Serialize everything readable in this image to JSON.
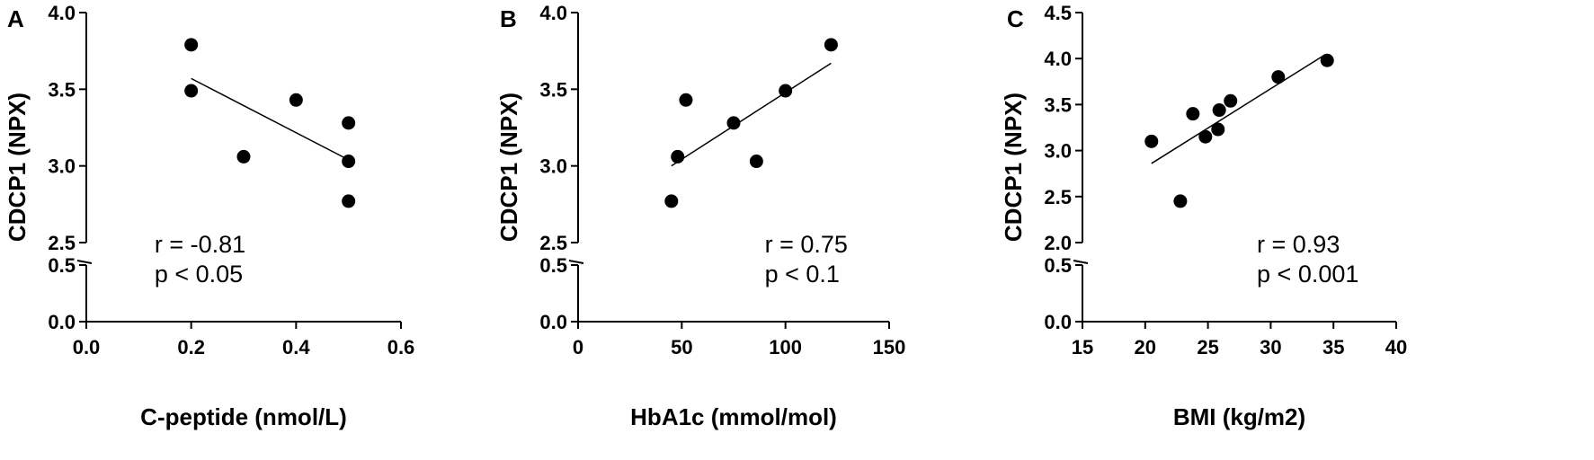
{
  "chart_data": [
    {
      "type": "scatter",
      "panel": "A",
      "xlabel": "C-peptide (nmol/L)",
      "ylabel": "CDCP1 (NPX)",
      "xlim": [
        0.0,
        0.6
      ],
      "xticks": [
        "0.0",
        "0.2",
        "0.4",
        "0.6"
      ],
      "ylim_upper": [
        2.5,
        4.0
      ],
      "yticks_upper": [
        "2.5",
        "3.0",
        "3.5",
        "4.0"
      ],
      "ylim_lower": [
        0.0,
        0.5
      ],
      "yticks_lower": [
        "0.0",
        "0.5"
      ],
      "points": [
        {
          "x": 0.2,
          "y": 3.79
        },
        {
          "x": 0.2,
          "y": 3.49
        },
        {
          "x": 0.3,
          "y": 3.06
        },
        {
          "x": 0.4,
          "y": 3.43
        },
        {
          "x": 0.5,
          "y": 3.28
        },
        {
          "x": 0.5,
          "y": 3.03
        },
        {
          "x": 0.5,
          "y": 2.77
        }
      ],
      "fit_line": {
        "x1": 0.2,
        "y1": 3.57,
        "x2": 0.5,
        "y2": 3.04
      },
      "stat_r": "r = -0.81",
      "stat_p": "p < 0.05",
      "stat_x": 0.13,
      "stat_y": 2.52
    },
    {
      "type": "scatter",
      "panel": "B",
      "xlabel": "HbA1c (mmol/mol)",
      "ylabel": "CDCP1 (NPX)",
      "xlim": [
        0,
        150
      ],
      "xticks": [
        "0",
        "50",
        "100",
        "150"
      ],
      "ylim_upper": [
        2.5,
        4.0
      ],
      "yticks_upper": [
        "2.5",
        "3.0",
        "3.5",
        "4.0"
      ],
      "ylim_lower": [
        0.0,
        0.5
      ],
      "yticks_lower": [
        "0.0",
        "0.5"
      ],
      "points": [
        {
          "x": 45,
          "y": 2.77
        },
        {
          "x": 48,
          "y": 3.06
        },
        {
          "x": 52,
          "y": 3.43
        },
        {
          "x": 75,
          "y": 3.28
        },
        {
          "x": 86,
          "y": 3.03
        },
        {
          "x": 100,
          "y": 3.49
        },
        {
          "x": 122,
          "y": 3.79
        }
      ],
      "fit_line": {
        "x1": 45,
        "y1": 3.0,
        "x2": 122,
        "y2": 3.67
      },
      "stat_r": "r = 0.75",
      "stat_p": "p < 0.1",
      "stat_x": 90,
      "stat_y": 2.52
    },
    {
      "type": "scatter",
      "panel": "C",
      "xlabel": "BMI (kg/m2)",
      "ylabel": "CDCP1 (NPX)",
      "xlim": [
        15,
        40
      ],
      "xticks": [
        "15",
        "20",
        "25",
        "30",
        "35",
        "40"
      ],
      "ylim_upper": [
        2.0,
        4.5
      ],
      "yticks_upper": [
        "2.0",
        "2.5",
        "3.0",
        "3.5",
        "4.0",
        "4.5"
      ],
      "ylim_lower": [
        0.0,
        0.5
      ],
      "yticks_lower": [
        "0.0",
        "0.5"
      ],
      "points": [
        {
          "x": 20.5,
          "y": 3.1
        },
        {
          "x": 22.8,
          "y": 2.45
        },
        {
          "x": 23.8,
          "y": 3.4
        },
        {
          "x": 24.8,
          "y": 3.15
        },
        {
          "x": 25.8,
          "y": 3.23
        },
        {
          "x": 25.9,
          "y": 3.44
        },
        {
          "x": 26.8,
          "y": 3.54
        },
        {
          "x": 30.6,
          "y": 3.8
        },
        {
          "x": 34.5,
          "y": 3.98
        }
      ],
      "fit_line": {
        "x1": 20.5,
        "y1": 2.86,
        "x2": 34.3,
        "y2": 4.04
      },
      "stat_r": "r = 0.93",
      "stat_p": "p < 0.001",
      "stat_x": 28.9,
      "stat_y": 2.02
    }
  ]
}
